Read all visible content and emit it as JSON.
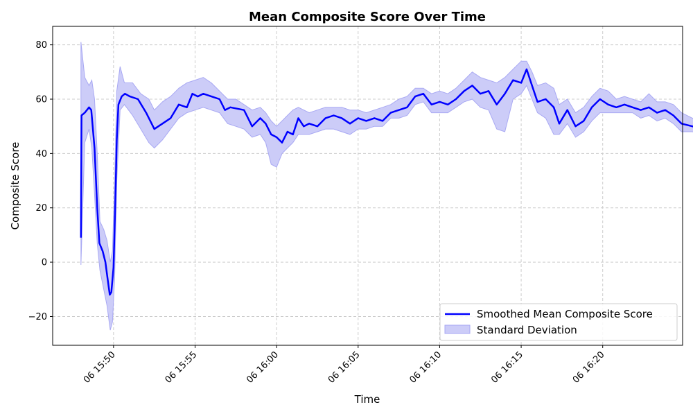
{
  "chart_data": {
    "type": "line",
    "title": "Mean Composite Score Over Time",
    "xlabel": "Time",
    "ylabel": "Composite Score",
    "x_domain": [
      "06 15:46:16",
      "06 16:24:54"
    ],
    "ylim": [
      -30.6,
      86.8
    ],
    "y_ticks": [
      -20,
      0,
      20,
      40,
      60,
      80
    ],
    "x_ticks": [
      {
        "t": "06 15:50",
        "label": "06 15:50"
      },
      {
        "t": "06 15:55",
        "label": "06 15:55"
      },
      {
        "t": "06 16:00",
        "label": "06 16:00"
      },
      {
        "t": "06 16:05",
        "label": "06 16:05"
      },
      {
        "t": "06 16:10",
        "label": "06 16:10"
      },
      {
        "t": "06 16:15",
        "label": "06 16:15"
      },
      {
        "t": "06 16:20",
        "label": "06 16:20"
      }
    ],
    "grid": true,
    "legend_position": "bottom-right",
    "colors": {
      "line": "#0000ff",
      "band_fill": "#ccccf8",
      "band_edge": "#a9a9f3",
      "grid": "#cccccc"
    },
    "series": [
      {
        "name": "Smoothed Mean Composite Score",
        "kind": "line",
        "points": [
          [
            "06 15:48:00",
            9
          ],
          [
            "06 15:48:02",
            54
          ],
          [
            "06 15:48:14",
            55
          ],
          [
            "06 15:48:30",
            57
          ],
          [
            "06 15:48:38",
            56
          ],
          [
            "06 15:48:50",
            42
          ],
          [
            "06 15:49:00",
            20
          ],
          [
            "06 15:49:08",
            7
          ],
          [
            "06 15:49:20",
            4
          ],
          [
            "06 15:49:30",
            0
          ],
          [
            "06 15:49:38",
            -6
          ],
          [
            "06 15:49:46",
            -12
          ],
          [
            "06 15:49:52",
            -11
          ],
          [
            "06 15:50:00",
            -2
          ],
          [
            "06 15:50:06",
            20
          ],
          [
            "06 15:50:12",
            45
          ],
          [
            "06 15:50:18",
            58
          ],
          [
            "06 15:50:30",
            61
          ],
          [
            "06 15:50:42",
            62
          ],
          [
            "06 15:51:00",
            61
          ],
          [
            "06 15:51:30",
            60
          ],
          [
            "06 15:52:00",
            55
          ],
          [
            "06 15:52:30",
            49
          ],
          [
            "06 15:53:00",
            51
          ],
          [
            "06 15:53:30",
            53
          ],
          [
            "06 15:54:00",
            58
          ],
          [
            "06 15:54:30",
            57
          ],
          [
            "06 15:54:50",
            62
          ],
          [
            "06 15:55:10",
            61
          ],
          [
            "06 15:55:30",
            62
          ],
          [
            "06 15:56:00",
            61
          ],
          [
            "06 15:56:30",
            60
          ],
          [
            "06 15:56:50",
            56
          ],
          [
            "06 15:57:10",
            57
          ],
          [
            "06 15:58:00",
            56
          ],
          [
            "06 15:58:30",
            50
          ],
          [
            "06 15:59:00",
            53
          ],
          [
            "06 15:59:20",
            51
          ],
          [
            "06 15:59:40",
            47
          ],
          [
            "06 16:00:00",
            46
          ],
          [
            "06 16:00:20",
            44
          ],
          [
            "06 16:00:40",
            48
          ],
          [
            "06 16:01:00",
            47
          ],
          [
            "06 16:01:20",
            53
          ],
          [
            "06 16:01:40",
            50
          ],
          [
            "06 16:02:00",
            51
          ],
          [
            "06 16:02:30",
            50
          ],
          [
            "06 16:03:00",
            53
          ],
          [
            "06 16:03:30",
            54
          ],
          [
            "06 16:04:00",
            53
          ],
          [
            "06 16:04:30",
            51
          ],
          [
            "06 16:05:00",
            53
          ],
          [
            "06 16:05:30",
            52
          ],
          [
            "06 16:06:00",
            53
          ],
          [
            "06 16:06:30",
            52
          ],
          [
            "06 16:07:00",
            55
          ],
          [
            "06 16:07:30",
            56
          ],
          [
            "06 16:08:00",
            57
          ],
          [
            "06 16:08:30",
            61
          ],
          [
            "06 16:09:00",
            62
          ],
          [
            "06 16:09:30",
            58
          ],
          [
            "06 16:10:00",
            59
          ],
          [
            "06 16:10:30",
            58
          ],
          [
            "06 16:11:00",
            60
          ],
          [
            "06 16:11:30",
            63
          ],
          [
            "06 16:12:00",
            65
          ],
          [
            "06 16:12:30",
            62
          ],
          [
            "06 16:13:00",
            63
          ],
          [
            "06 16:13:30",
            58
          ],
          [
            "06 16:14:00",
            62
          ],
          [
            "06 16:14:30",
            67
          ],
          [
            "06 16:15:00",
            66
          ],
          [
            "06 16:15:20",
            71
          ],
          [
            "06 16:15:40",
            65
          ],
          [
            "06 16:16:00",
            59
          ],
          [
            "06 16:16:30",
            60
          ],
          [
            "06 16:17:00",
            57
          ],
          [
            "06 16:17:20",
            51
          ],
          [
            "06 16:17:50",
            56
          ],
          [
            "06 16:18:20",
            50
          ],
          [
            "06 16:18:50",
            52
          ],
          [
            "06 16:19:20",
            57
          ],
          [
            "06 16:19:50",
            60
          ],
          [
            "06 16:20:20",
            58
          ],
          [
            "06 16:20:50",
            57
          ],
          [
            "06 16:21:20",
            58
          ],
          [
            "06 16:21:50",
            57
          ],
          [
            "06 16:22:20",
            56
          ],
          [
            "06 16:22:50",
            57
          ],
          [
            "06 16:23:20",
            55
          ],
          [
            "06 16:23:50",
            56
          ],
          [
            "06 16:24:20",
            54
          ],
          [
            "06 16:24:50",
            51
          ],
          [
            "06 16:25:30",
            50
          ],
          [
            "06 16:26:10",
            49
          ],
          [
            "06 16:26:30",
            48
          ],
          [
            "06 16:26:50",
            49
          ]
        ]
      },
      {
        "name": "Standard Deviation",
        "kind": "band",
        "points": [
          [
            "06 15:48:00",
            -1,
            81
          ],
          [
            "06 15:48:14",
            44,
            68
          ],
          [
            "06 15:48:30",
            49,
            65
          ],
          [
            "06 15:48:40",
            42,
            67
          ],
          [
            "06 15:48:50",
            25,
            60
          ],
          [
            "06 15:49:00",
            7,
            40
          ],
          [
            "06 15:49:10",
            -3,
            15
          ],
          [
            "06 15:49:24",
            -10,
            12
          ],
          [
            "06 15:49:36",
            -16,
            8
          ],
          [
            "06 15:49:48",
            -25,
            0
          ],
          [
            "06 15:49:56",
            -22,
            4
          ],
          [
            "06 15:50:04",
            -6,
            30
          ],
          [
            "06 15:50:12",
            30,
            63
          ],
          [
            "06 15:50:24",
            56,
            72
          ],
          [
            "06 15:50:40",
            58,
            66
          ],
          [
            "06 15:51:10",
            54,
            66
          ],
          [
            "06 15:51:40",
            49,
            62
          ],
          [
            "06 15:52:10",
            44,
            60
          ],
          [
            "06 15:52:30",
            42,
            56
          ],
          [
            "06 15:53:00",
            45,
            59
          ],
          [
            "06 15:53:30",
            49,
            61
          ],
          [
            "06 15:54:00",
            53,
            64
          ],
          [
            "06 15:54:30",
            55,
            66
          ],
          [
            "06 15:55:00",
            56,
            67
          ],
          [
            "06 15:55:30",
            57,
            68
          ],
          [
            "06 15:56:00",
            56,
            66
          ],
          [
            "06 15:56:30",
            55,
            63
          ],
          [
            "06 15:57:00",
            51,
            60
          ],
          [
            "06 15:57:30",
            50,
            60
          ],
          [
            "06 15:58:00",
            49,
            58
          ],
          [
            "06 15:58:30",
            46,
            56
          ],
          [
            "06 15:59:00",
            47,
            57
          ],
          [
            "06 15:59:20",
            44,
            55
          ],
          [
            "06 15:59:40",
            36,
            52
          ],
          [
            "06 16:00:00",
            35,
            50
          ],
          [
            "06 16:00:20",
            40,
            52
          ],
          [
            "06 16:00:40",
            42,
            54
          ],
          [
            "06 16:01:00",
            44,
            56
          ],
          [
            "06 16:01:20",
            47,
            57
          ],
          [
            "06 16:02:00",
            47,
            55
          ],
          [
            "06 16:02:30",
            48,
            56
          ],
          [
            "06 16:03:00",
            49,
            57
          ],
          [
            "06 16:03:30",
            49,
            57
          ],
          [
            "06 16:04:00",
            48,
            57
          ],
          [
            "06 16:04:30",
            47,
            56
          ],
          [
            "06 16:05:00",
            49,
            56
          ],
          [
            "06 16:05:30",
            49,
            55
          ],
          [
            "06 16:06:00",
            50,
            56
          ],
          [
            "06 16:06:30",
            50,
            57
          ],
          [
            "06 16:07:00",
            53,
            58
          ],
          [
            "06 16:07:30",
            53,
            60
          ],
          [
            "06 16:08:00",
            54,
            61
          ],
          [
            "06 16:08:30",
            58,
            64
          ],
          [
            "06 16:09:00",
            59,
            64
          ],
          [
            "06 16:09:30",
            55,
            62
          ],
          [
            "06 16:10:00",
            55,
            63
          ],
          [
            "06 16:10:30",
            55,
            62
          ],
          [
            "06 16:11:00",
            57,
            64
          ],
          [
            "06 16:11:30",
            59,
            67
          ],
          [
            "06 16:12:00",
            60,
            70
          ],
          [
            "06 16:12:30",
            57,
            68
          ],
          [
            "06 16:13:00",
            56,
            67
          ],
          [
            "06 16:13:30",
            49,
            66
          ],
          [
            "06 16:14:00",
            48,
            68
          ],
          [
            "06 16:14:30",
            60,
            71
          ],
          [
            "06 16:15:00",
            62,
            74
          ],
          [
            "06 16:15:20",
            65,
            74
          ],
          [
            "06 16:15:40",
            60,
            70
          ],
          [
            "06 16:16:00",
            55,
            65
          ],
          [
            "06 16:16:30",
            53,
            66
          ],
          [
            "06 16:17:00",
            47,
            64
          ],
          [
            "06 16:17:20",
            47,
            58
          ],
          [
            "06 16:17:50",
            51,
            60
          ],
          [
            "06 16:18:20",
            46,
            55
          ],
          [
            "06 16:18:50",
            48,
            57
          ],
          [
            "06 16:19:20",
            52,
            61
          ],
          [
            "06 16:19:50",
            55,
            64
          ],
          [
            "06 16:20:20",
            55,
            63
          ],
          [
            "06 16:20:50",
            55,
            60
          ],
          [
            "06 16:21:20",
            55,
            61
          ],
          [
            "06 16:21:50",
            55,
            60
          ],
          [
            "06 16:22:20",
            53,
            59
          ],
          [
            "06 16:22:50",
            54,
            62
          ],
          [
            "06 16:23:20",
            52,
            59
          ],
          [
            "06 16:23:50",
            53,
            59
          ],
          [
            "06 16:24:20",
            51,
            58
          ],
          [
            "06 16:24:50",
            48,
            55
          ],
          [
            "06 16:25:30",
            48,
            53
          ],
          [
            "06 16:26:10",
            47,
            52
          ],
          [
            "06 16:26:30",
            46,
            51
          ],
          [
            "06 16:26:50",
            46,
            51
          ]
        ]
      }
    ]
  }
}
